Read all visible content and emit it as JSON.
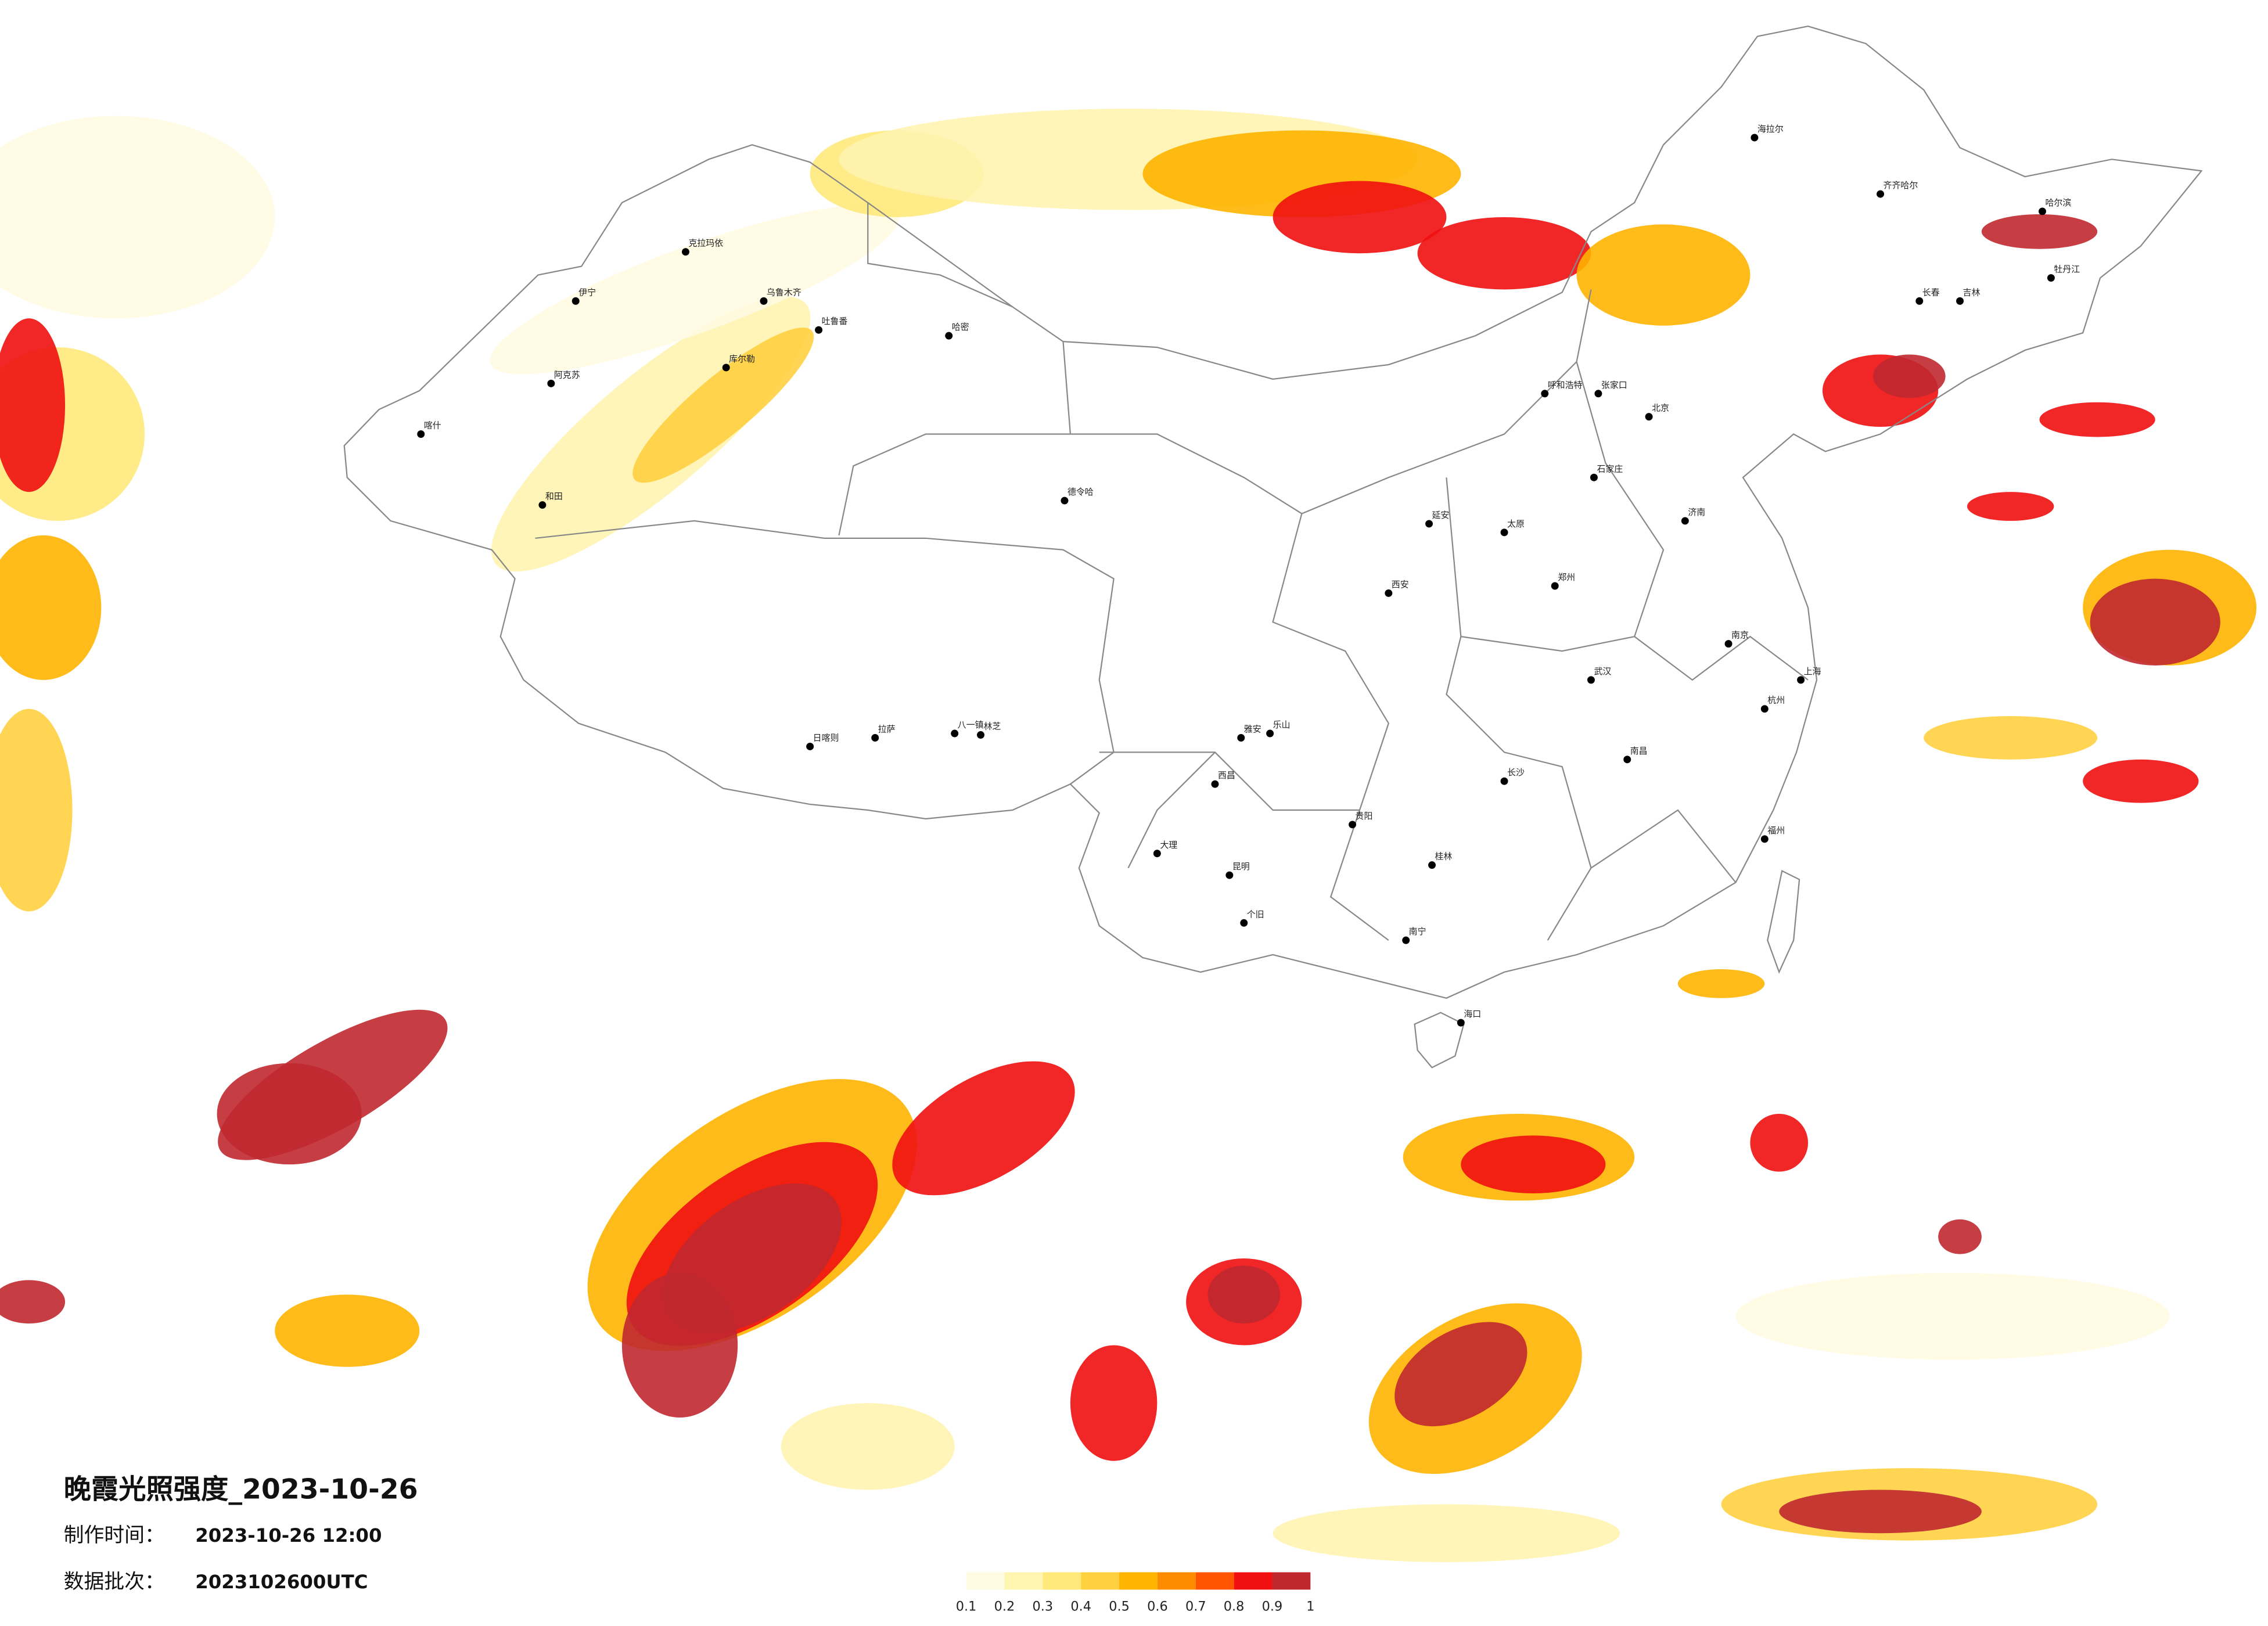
{
  "title": "晚霞光照强度_2023-10-26",
  "footer": {
    "made_label": "制作时间：",
    "made_time": "2023-10-26 12:00",
    "batch_label": "数据批次：",
    "batch": "2023102600UTC"
  },
  "legend": {
    "ticks": [
      0.1,
      0.2,
      0.3,
      0.4,
      0.5,
      0.6,
      0.7,
      0.8,
      0.9,
      1
    ],
    "colors": [
      "#fffbe2",
      "#fff4b0",
      "#ffe97a",
      "#ffd040",
      "#ffb400",
      "#ff8c00",
      "#ff5500",
      "#f01010",
      "#c02830"
    ]
  },
  "cities": [
    "克拉玛依",
    "伊宁",
    "乌鲁木齐",
    "吐鲁番",
    "哈密",
    "库尔勒",
    "阿克苏",
    "喀什",
    "和田",
    "德令哈",
    "日喀则",
    "拉萨",
    "八一镇",
    "林芝",
    "海拉尔",
    "齐齐哈尔",
    "哈尔滨",
    "长春",
    "吉林",
    "牡丹江",
    "呼和浩特",
    "张家口",
    "北京",
    "石家庄",
    "太原",
    "济南",
    "郑州",
    "西安",
    "延安",
    "武汉",
    "南京",
    "上海",
    "杭州",
    "南昌",
    "长沙",
    "福州",
    "贵阳",
    "昆明",
    "南宁",
    "桂林",
    "海口",
    "大理",
    "雅安",
    "乐山",
    "个旧",
    "西昌"
  ]
}
